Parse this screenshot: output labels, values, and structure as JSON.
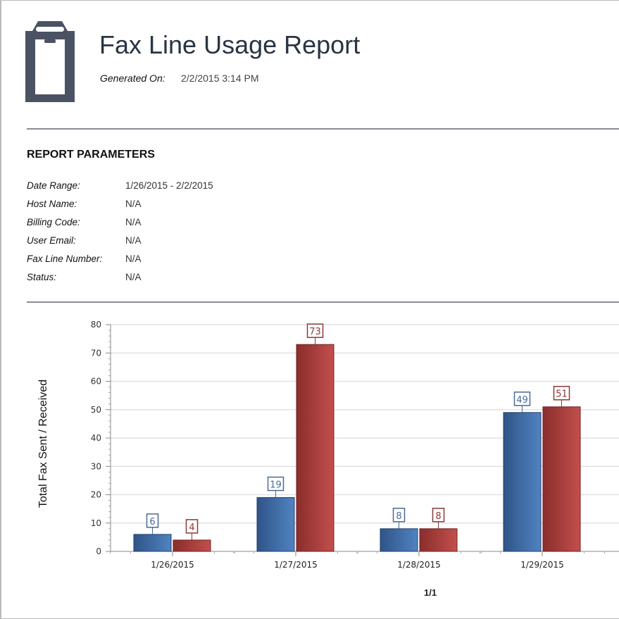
{
  "header": {
    "title": "Fax Line Usage Report",
    "generated_label": "Generated On:",
    "generated_value": "2/2/2015 3:14 PM",
    "icon": "clipboard-icon"
  },
  "parameters": {
    "heading": "REPORT PARAMETERS",
    "items": [
      {
        "label": "Date Range:",
        "value": "1/26/2015 - 2/2/2015"
      },
      {
        "label": "Host Name:",
        "value": "N/A"
      },
      {
        "label": "Billing Code:",
        "value": "N/A"
      },
      {
        "label": "User Email:",
        "value": "N/A"
      },
      {
        "label": "Fax Line Number:",
        "value": "N/A"
      },
      {
        "label": "Status:",
        "value": "N/A"
      }
    ]
  },
  "chart_data": {
    "type": "bar",
    "ylabel": "Total Fax Sent / Received",
    "xlabel": "",
    "ylim": [
      0,
      80
    ],
    "yticks": [
      0,
      10,
      20,
      30,
      40,
      50,
      60,
      70,
      80
    ],
    "grid": true,
    "categories": [
      "1/26/2015",
      "1/27/2015",
      "1/28/2015",
      "1/29/2015"
    ],
    "series": [
      {
        "values": [
          6,
          19,
          8,
          49
        ],
        "color": "#3c6aa5",
        "label_color": "#4a6a95"
      },
      {
        "values": [
          4,
          73,
          8,
          51
        ],
        "color": "#a63c3a",
        "label_color": "#8a3a38"
      }
    ]
  },
  "footer": {
    "page": "1/1"
  }
}
